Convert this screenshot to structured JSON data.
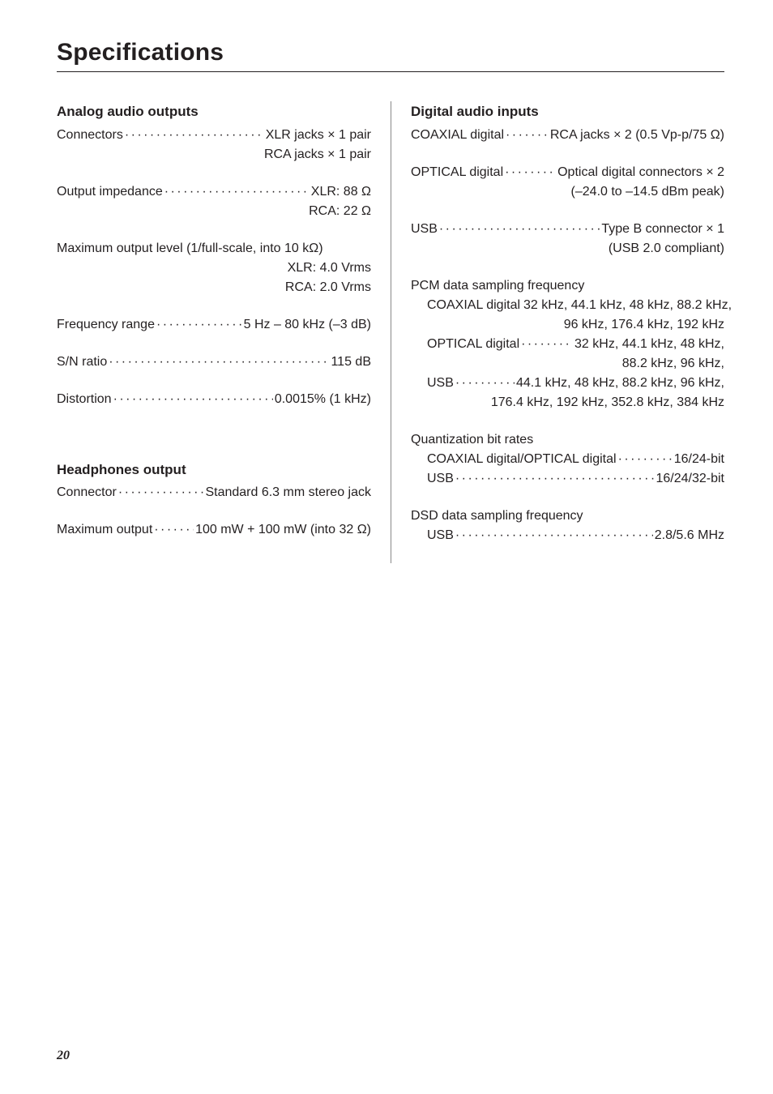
{
  "page": {
    "title": "Specifications",
    "number": "20",
    "font_family": "Myriad Pro",
    "text_color": "#231f20",
    "background_color": "#ffffff",
    "title_fontsize": 30,
    "body_fontsize": 16,
    "heading_fontsize": 17,
    "rule_color": "#231f20",
    "column_divider_color": "#888888"
  },
  "left": {
    "analog": {
      "heading": "Analog audio outputs",
      "connectors_label": "Connectors",
      "connectors_v1": "XLR jacks  × 1 pair",
      "connectors_v2": "RCA jacks × 1 pair",
      "out_imp_label": "Output impedance",
      "out_imp_v1": "XLR: 88 Ω",
      "out_imp_v2": "RCA: 22 Ω",
      "max_out_label": "Maximum output level (1/full-scale, into 10 kΩ)",
      "max_out_v1": "XLR: 4.0 Vrms",
      "max_out_v2": "RCA: 2.0 Vrms",
      "freq_label": "Frequency range",
      "freq_v": "5 Hz – 80 kHz (–3 dB)",
      "sn_label": "S/N ratio",
      "sn_v": "115 dB",
      "dist_label": "Distortion",
      "dist_v": "0.0015% (1 kHz)"
    },
    "headphones": {
      "heading": "Headphones output",
      "conn_label": "Connector",
      "conn_v": "Standard 6.3 mm stereo jack",
      "max_label": "Maximum output",
      "max_v": "100 mW + 100 mW (into 32 Ω)"
    }
  },
  "right": {
    "digital": {
      "heading": "Digital audio inputs",
      "coax_label": "COAXIAL digital",
      "coax_v": "RCA jacks × 2 (0.5 Vp-p/75 Ω)",
      "opt_label": "OPTICAL digital",
      "opt_v1": "Optical digital connectors × 2",
      "opt_v2": "(–24.0 to –14.5 dBm peak)",
      "usb_label": "USB",
      "usb_v1": "Type B connector × 1",
      "usb_v2": "(USB 2.0 compliant)",
      "pcm_label": "PCM data sampling frequency",
      "pcm_coax_label": "COAXIAL digital",
      "pcm_coax_v1": "32 kHz, 44.1 kHz, 48 kHz, 88.2 kHz,",
      "pcm_coax_v2": "96 kHz, 176.4 kHz, 192 kHz",
      "pcm_opt_label": "OPTICAL digital",
      "pcm_opt_v1": "32 kHz, 44.1 kHz, 48 kHz,",
      "pcm_opt_v2": "88.2 kHz, 96 kHz,",
      "pcm_usb_label": "USB",
      "pcm_usb_v1": "44.1 kHz, 48 kHz, 88.2 kHz, 96 kHz,",
      "pcm_usb_v2": "176.4 kHz, 192 kHz, 352.8 kHz, 384 kHz",
      "quant_label": "Quantization bit rates",
      "quant_co_label": "COAXIAL digital/OPTICAL digital",
      "quant_co_v": "16/24-bit",
      "quant_usb_label": "USB",
      "quant_usb_v": "16/24/32-bit",
      "dsd_label": "DSD data sampling frequency",
      "dsd_usb_label": "USB",
      "dsd_usb_v": "2.8/5.6 MHz"
    }
  }
}
